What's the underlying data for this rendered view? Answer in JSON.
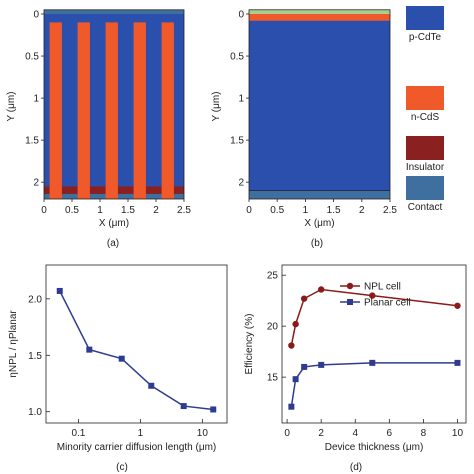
{
  "colors": {
    "p_cdte": "#2b4fad",
    "n_cds": "#f05a2a",
    "insulator": "#8b2020",
    "contact": "#3f6f9f",
    "top_green": "#a8cf8f",
    "npl_line": "#8b1a1a",
    "planar_line": "#2e3b8f"
  },
  "legend": {
    "items": [
      {
        "label": "p-CdTe",
        "color": "p_cdte"
      },
      {
        "label": "n-CdS",
        "color": "n_cds"
      },
      {
        "label": "Insulator",
        "color": "insulator"
      },
      {
        "label": "Contact",
        "color": "contact"
      }
    ]
  },
  "panels": {
    "a": {
      "caption": "(a)"
    },
    "b": {
      "caption": "(b)"
    },
    "c": {
      "caption": "(c)"
    },
    "d": {
      "caption": "(d)"
    }
  },
  "chart_data": [
    {
      "panel": "a",
      "type": "other",
      "description_type": "device cross-section map",
      "xlabel": "X (μm)",
      "ylabel": "Y (μm)",
      "xlim": [
        0,
        2.5
      ],
      "ylim": [
        2.2,
        0
      ],
      "xticks": [
        "0",
        "0.5",
        "1",
        "1.5",
        "2",
        "2.5"
      ],
      "yticks": [
        "0",
        "0.5",
        "1",
        "1.5",
        "2"
      ],
      "top_contact_y": [
        -0.05,
        0.0
      ],
      "bottom_layers_y": {
        "insulator": [
          2.05,
          2.14
        ],
        "contact": [
          2.14,
          2.2
        ]
      },
      "pillars_x": [
        [
          0.1,
          0.32
        ],
        [
          0.6,
          0.82
        ],
        [
          1.1,
          1.32
        ],
        [
          1.6,
          1.82
        ],
        [
          2.1,
          2.32
        ]
      ],
      "pillars_y": [
        0.1,
        2.2
      ]
    },
    {
      "panel": "b",
      "type": "other",
      "description_type": "device cross-section map",
      "xlabel": "X (μm)",
      "ylabel": "Y (μm)",
      "xlim": [
        0,
        2.5
      ],
      "ylim": [
        2.2,
        0
      ],
      "xticks": [
        "0",
        "0.5",
        "1",
        "1.5",
        "2",
        "2.5"
      ],
      "yticks": [
        "0",
        "0.5",
        "1",
        "1.5",
        "2"
      ],
      "top_green_y": [
        -0.05,
        0.0
      ],
      "n_cds_y": [
        0.0,
        0.08
      ],
      "contact_y": [
        2.1,
        2.2
      ]
    },
    {
      "panel": "c",
      "type": "line",
      "xlabel": "Minority carrier diffusion length (μm)",
      "ylabel": "ηNPL / ηPlanar",
      "xscale": "log",
      "xlim": [
        0.03,
        25
      ],
      "ylim": [
        0.9,
        2.3
      ],
      "yticks": [
        "1.0",
        "1.5",
        "2.0"
      ],
      "xticks": [
        {
          "value": 0.1,
          "label": "0.1"
        },
        {
          "value": 1,
          "label": "1"
        },
        {
          "value": 10,
          "label": "10"
        }
      ],
      "series": [
        {
          "x": [
            0.05,
            0.15,
            0.5,
            1.5,
            5,
            15
          ],
          "y": [
            2.07,
            1.55,
            1.47,
            1.23,
            1.05,
            1.02
          ]
        }
      ]
    },
    {
      "panel": "d",
      "type": "line",
      "xlabel": "Device thickness (μm)",
      "ylabel": "Efficiency (%)",
      "xlim": [
        -0.3,
        10.5
      ],
      "ylim": [
        10.5,
        26
      ],
      "xticks": [
        "0",
        "2",
        "4",
        "6",
        "8",
        "10"
      ],
      "yticks": [
        "15",
        "20",
        "25"
      ],
      "series": [
        {
          "name": "NPL cell",
          "color": "npl_line",
          "marker": "circle",
          "x": [
            0.25,
            0.5,
            1,
            2,
            5,
            10
          ],
          "y": [
            18.1,
            20.2,
            22.7,
            23.6,
            23.0,
            22.0
          ]
        },
        {
          "name": "Planar cell",
          "color": "planar_line",
          "marker": "square",
          "x": [
            0.25,
            0.5,
            1,
            2,
            5,
            10
          ],
          "y": [
            12.1,
            14.8,
            16.0,
            16.2,
            16.4,
            16.4
          ]
        }
      ]
    }
  ]
}
